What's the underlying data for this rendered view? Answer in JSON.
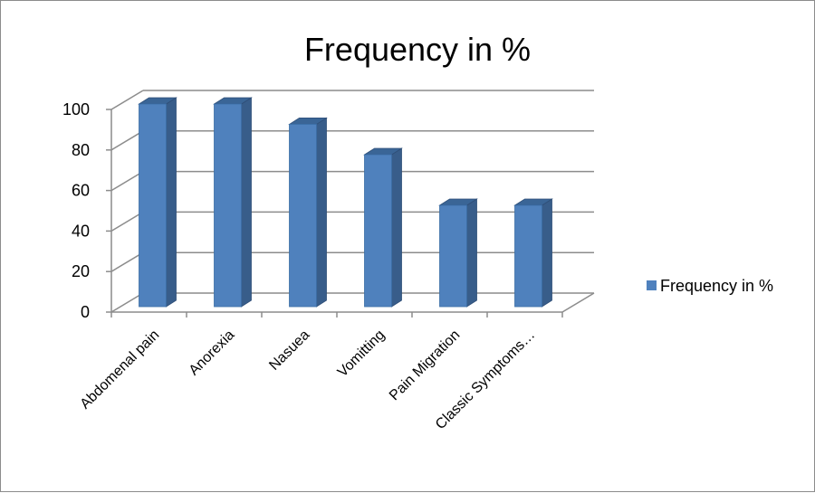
{
  "chart_data": {
    "type": "bar",
    "title": "Frequency in %",
    "categories": [
      "Abdomenal pain",
      "Anorexia",
      "Nasuea",
      "Vomitting",
      "Pain Migration",
      "Classic Symptoms…"
    ],
    "series": [
      {
        "name": "Frequency in %",
        "values": [
          100,
          100,
          90,
          75,
          50,
          50
        ]
      }
    ],
    "yticks": [
      "0",
      "20",
      "40",
      "60",
      "80",
      "100"
    ],
    "ylim": [
      0,
      100
    ],
    "grid": true,
    "legend_position": "right",
    "colors": {
      "bar_front": "#4f81bd",
      "bar_side": "#385d8a",
      "bar_top": "#3a6596",
      "grid": "#8c8c8c",
      "axis": "#8c8c8c"
    }
  }
}
